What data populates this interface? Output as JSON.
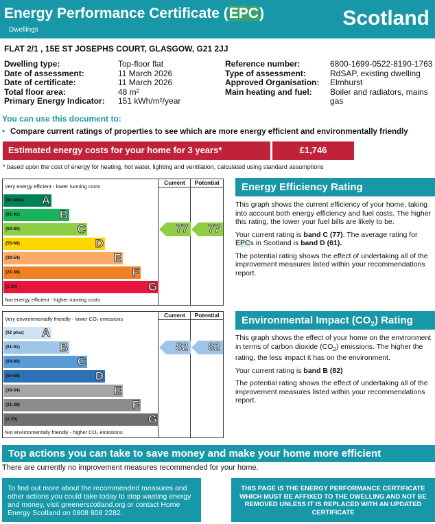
{
  "header": {
    "title_before": "Energy Performance Certificate (",
    "title_highlight": "EPC",
    "title_after": ")",
    "subtitle": "Dwellings",
    "country": "Scotland"
  },
  "address": "FLAT 2/1 , 15E ST JOSEPHS COURT, GLASGOW, G21 2JJ",
  "details_left": [
    {
      "label": "Dwelling type:",
      "value": "Top-floor flat"
    },
    {
      "label": "Date of assessment:",
      "value": "11 March 2026"
    },
    {
      "label": "Date of certificate:",
      "value": "11 March 2026"
    },
    {
      "label": "Total floor area:",
      "value": "48 m²"
    },
    {
      "label": "Primary Energy Indicator:",
      "value": "151 kWh/m²/year"
    }
  ],
  "details_right": [
    {
      "label": "Reference number:",
      "value": "6800-1699-0522-8190-1763"
    },
    {
      "label": "Type of assessment:",
      "value": "RdSAP, existing dwelling"
    },
    {
      "label": "Approved Organisation:",
      "value": "Elmhurst"
    },
    {
      "label": "Main heating and fuel:",
      "value": "Boiler and radiators, mains",
      "value2": "gas"
    }
  ],
  "use_title": "You can use this document to:",
  "use_bullet": "Compare current ratings of properties to see which are more energy efficient and environmentally friendly",
  "cost": {
    "label": "Estimated energy costs for your home for 3 years*",
    "value": "£1,746",
    "note": "* based upon the cost of energy for heating, hot water, lighting and ventilation, calculated using standard assumptions"
  },
  "efficiency_chart": {
    "col_current": "Current",
    "col_potential": "Potential",
    "top_label": "Very energy efficient - lower running costs",
    "bottom_label": "Not energy efficient - higher running costs",
    "bands": [
      {
        "range": "(92 plus)",
        "letter": "A",
        "color": "#008054"
      },
      {
        "range": "(81-91)",
        "letter": "B",
        "color": "#19b459"
      },
      {
        "range": "(69-80)",
        "letter": "C",
        "color": "#8dce46"
      },
      {
        "range": "(55-68)",
        "letter": "D",
        "color": "#ffd500"
      },
      {
        "range": "(39-54)",
        "letter": "E",
        "color": "#fcaa65"
      },
      {
        "range": "(21-38)",
        "letter": "F",
        "color": "#ef8023"
      },
      {
        "range": "(1-20)",
        "letter": "G",
        "color": "#e9153b"
      }
    ],
    "current": 77,
    "potential": 77,
    "arrow_color": "#8dce46"
  },
  "environment_chart": {
    "col_current": "Current",
    "col_potential": "Potential",
    "top_label": "Very environmentally friendly - lower CO₂ emissions",
    "bottom_label": "Not environmentally friendly - higher CO₂ emissions",
    "bands": [
      {
        "range": "(92 plus)",
        "letter": "A",
        "color": "#cfe2f3"
      },
      {
        "range": "(81-91)",
        "letter": "B",
        "color": "#9fc5e8"
      },
      {
        "range": "(69-80)",
        "letter": "C",
        "color": "#5a9bd5"
      },
      {
        "range": "(55-68)",
        "letter": "D",
        "color": "#2e6fb6"
      },
      {
        "range": "(39-54)",
        "letter": "E",
        "color": "#a6a6a6"
      },
      {
        "range": "(21-38)",
        "letter": "F",
        "color": "#8c8c8c"
      },
      {
        "range": "(1-20)",
        "letter": "G",
        "color": "#6f6f6f"
      }
    ],
    "current": 82,
    "potential": 82,
    "arrow_color": "#9fc5e8"
  },
  "efficiency_panel": {
    "title": "Energy Efficiency Rating",
    "p1": "This graph shows the current efficiency of your home, taking into account both energy efficiency and fuel costs. The higher this rating, the lower your fuel bills are likely to be.",
    "p2_a": "Your current rating is ",
    "p2_b": "band C (77)",
    "p2_c": ". The average rating for ",
    "p2_hl": "EPC",
    "p2_d": "s in Scotland is ",
    "p2_e": "band D (61).",
    "p3": "The potential rating shows the effect of undertaking all of the improvement measures listed within your recommendations report."
  },
  "environment_panel": {
    "title_a": "Environmental Impact (CO",
    "title_sub": "2",
    "title_b": ") Rating",
    "p1_a": "This graph shows the effect of your home on the environment in terms of carbon dioxide (CO",
    "p1_sub": "2",
    "p1_b": ") emissions. The higher the rating, the less impact it has on the environment.",
    "p2_a": "Your current rating is ",
    "p2_b": "band B (82)",
    "p3": "The potential rating shows the effect of undertaking all of the improvement measures listed within your recommendations report."
  },
  "actions": {
    "title": "Top actions you can take to save money and make your home more efficient",
    "text": "There are currently no improvement measures recommended for your home."
  },
  "footer": {
    "left": "To find out more about the recommended measures and other actions you could take today to stop wasting energy and money, visit greenerscotland.org or contact Home Energy Scotland on 0808 808 2282.",
    "right": "THIS PAGE IS THE ENERGY PERFORMANCE CERTIFICATE WHICH MUST BE AFFIXED TO THE DWELLING AND NOT BE REMOVED UNLESS IT IS REPLACED WITH AN UPDATED CERTIFICATE"
  }
}
